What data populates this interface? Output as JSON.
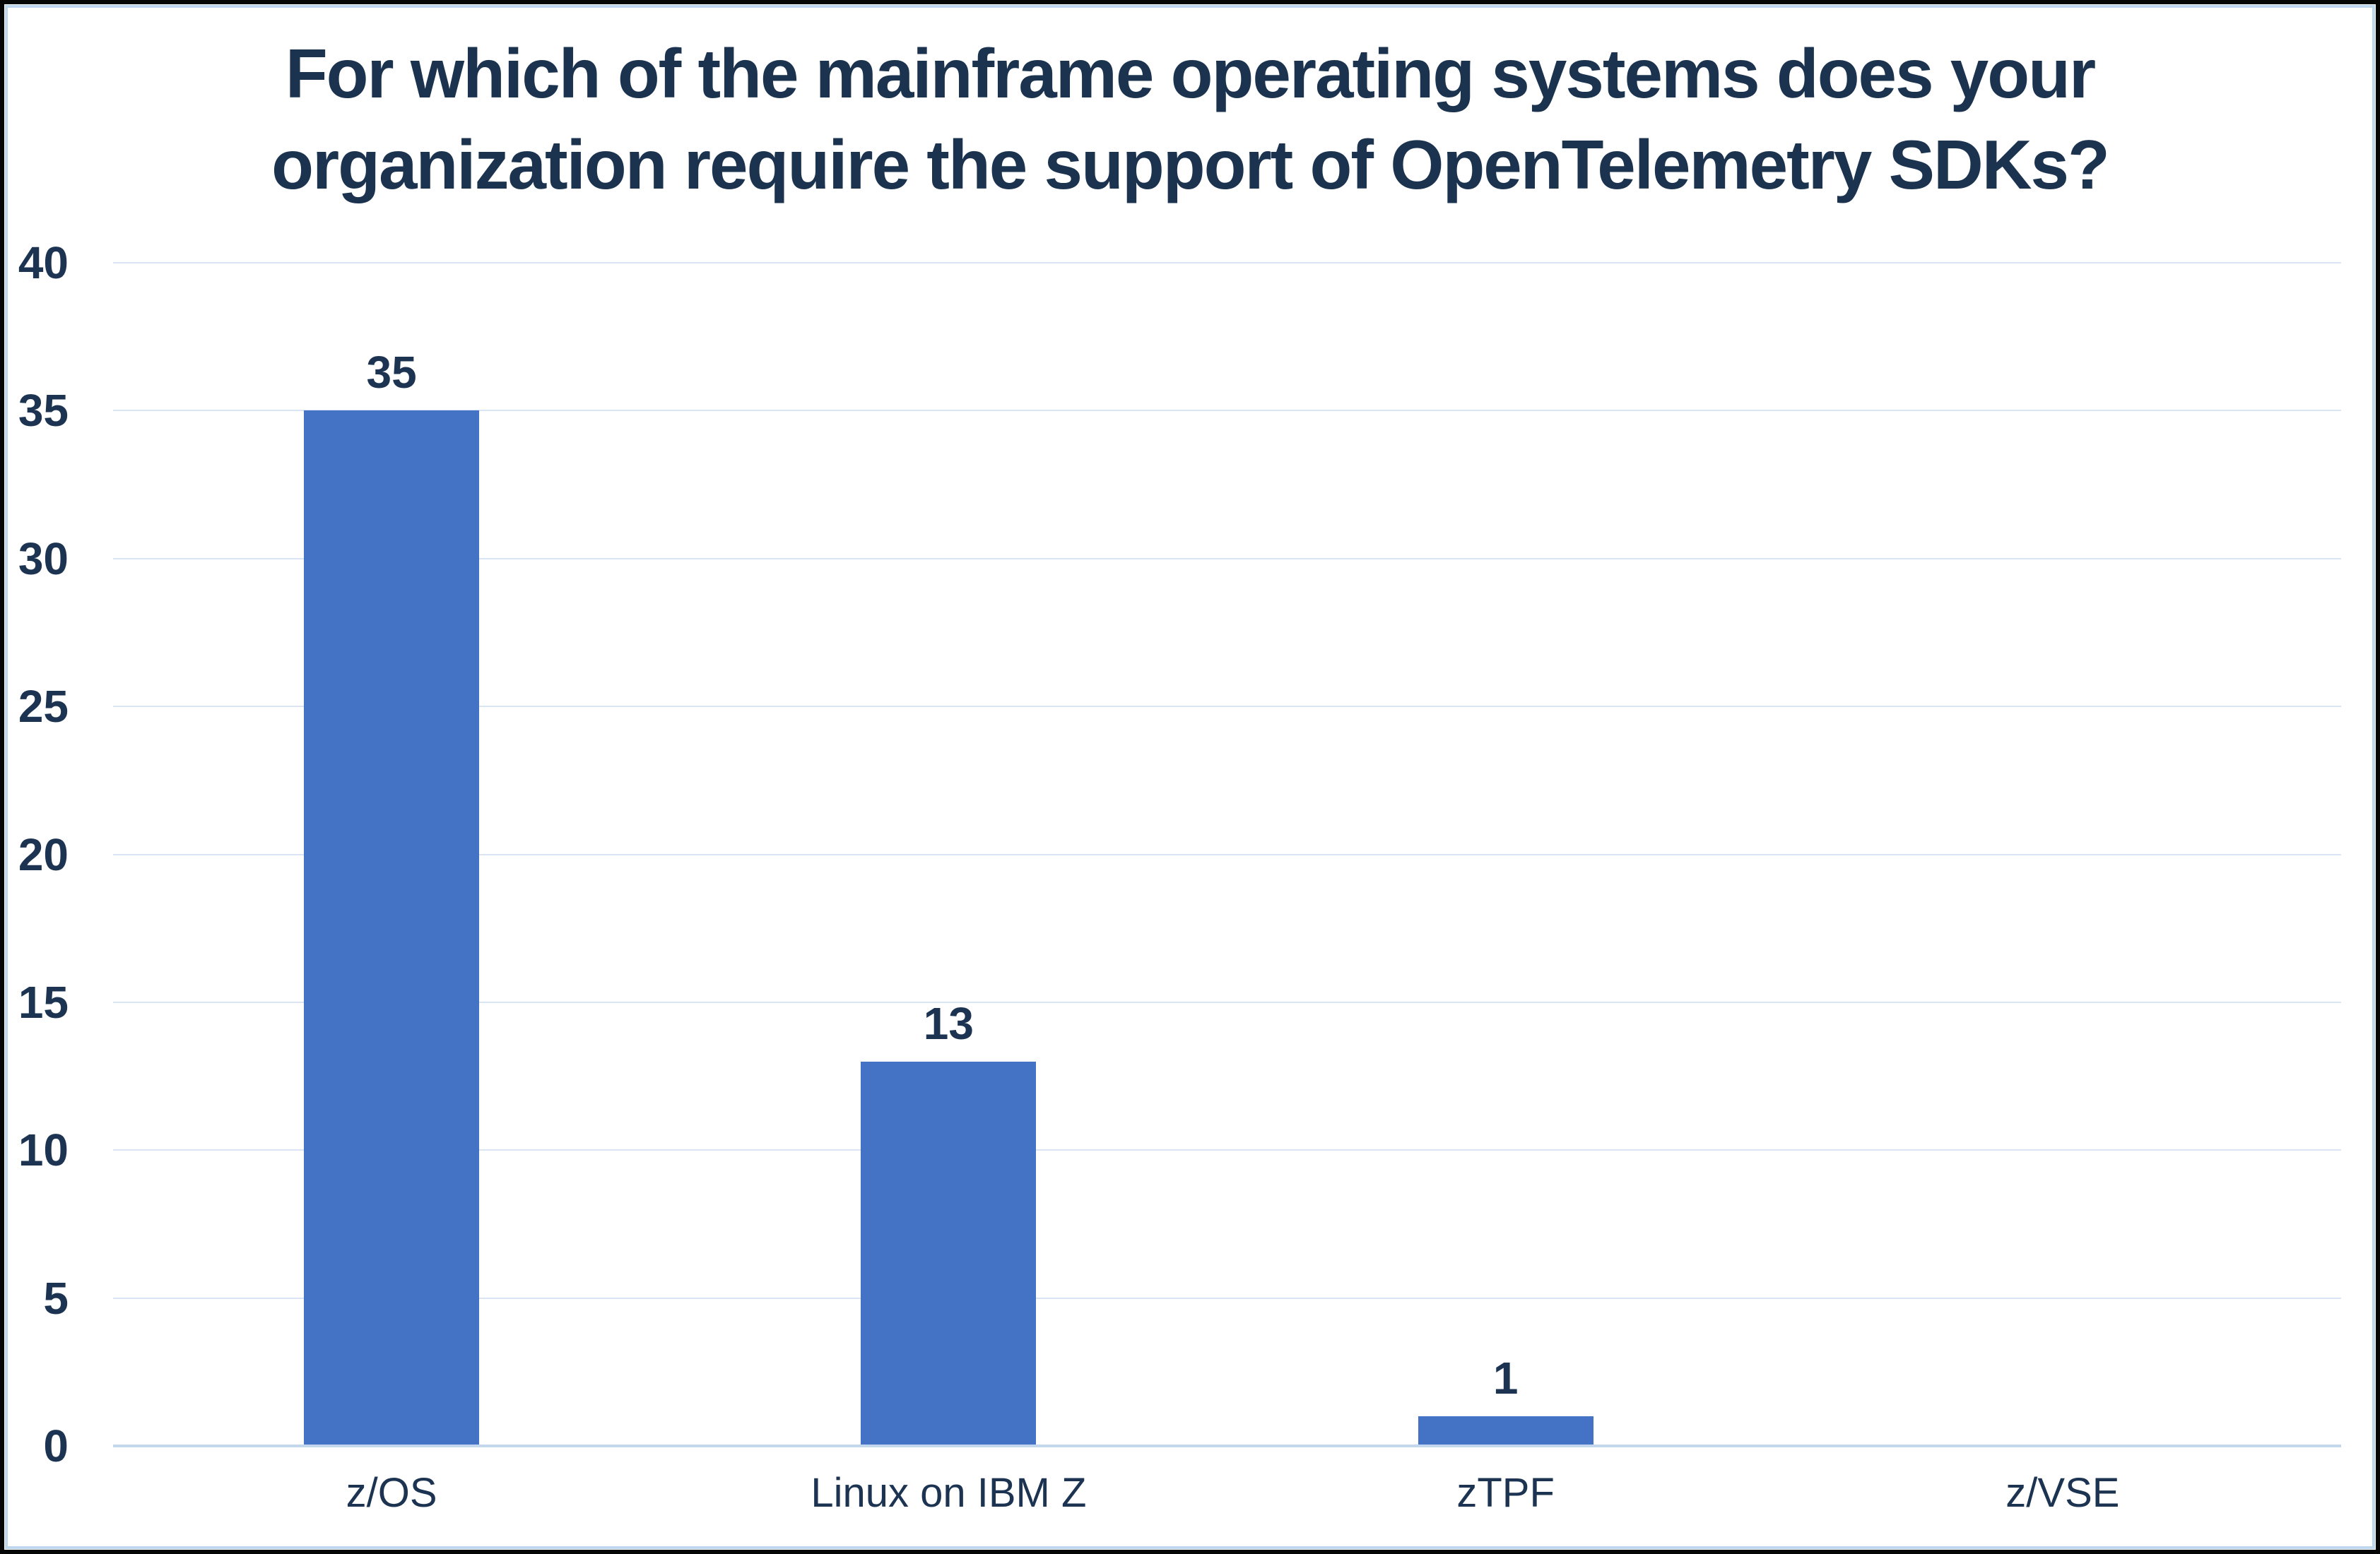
{
  "title_lines": [
    "For which of the mainframe operating systems does your",
    "organization require the support of OpenTelemetry SDKs?"
  ],
  "chart_data": {
    "type": "bar",
    "title": "For which of the mainframe operating systems does your organization require the support of OpenTelemetry SDKs?",
    "categories": [
      "z/OS",
      "Linux on IBM Z",
      "zTPF",
      "z/VSE"
    ],
    "values": [
      35,
      13,
      1,
      0
    ],
    "data_labels": [
      "35",
      "13",
      "1",
      ""
    ],
    "xlabel": "",
    "ylabel": "",
    "ylim": [
      0,
      40
    ],
    "yticks": [
      0,
      5,
      10,
      15,
      20,
      25,
      30,
      35,
      40
    ],
    "grid": "horizontal",
    "legend": "none",
    "series_name": ""
  },
  "colors": {
    "bar": "#4472C4",
    "title_text": "#1B334F",
    "label_text": "#1C3452",
    "gridline": "#D9E4F4",
    "axis_line": "#C3D8EE",
    "inner_border": "#BDD7EE",
    "outer_border": "#060606",
    "background": "#FFFFFF"
  }
}
